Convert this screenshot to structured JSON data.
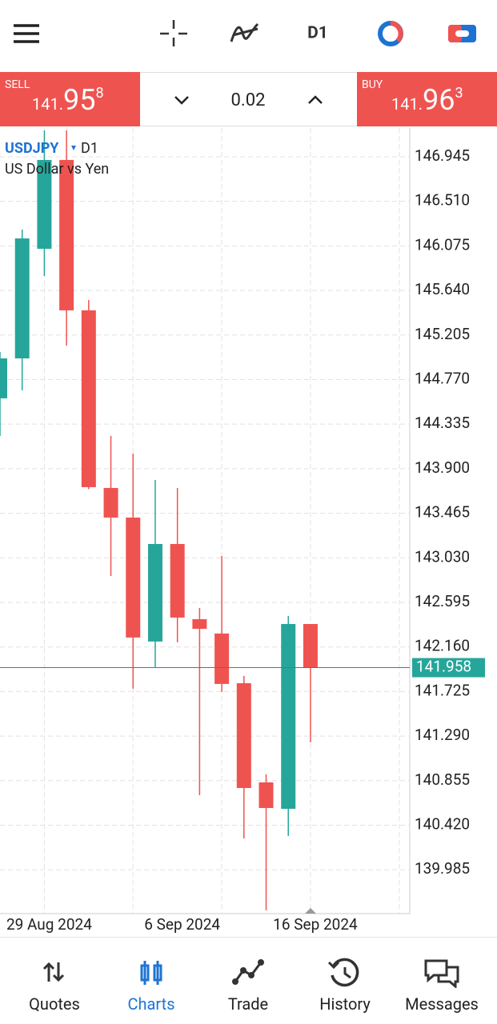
{
  "header": {
    "timeframe": "D1"
  },
  "sell": {
    "label": "SELL",
    "prefix": "141.",
    "big": "95",
    "sup": "8"
  },
  "buy": {
    "label": "BUY",
    "prefix": "141.",
    "big": "96",
    "sup": "3"
  },
  "lot": "0.02",
  "symbol": {
    "name": "USDJPY",
    "timeframe": "D1",
    "description": "US Dollar vs Yen"
  },
  "nav": [
    "Quotes",
    "Charts",
    "Trade",
    "History",
    "Messages"
  ],
  "chart_data": {
    "type": "candlestick",
    "categories": [
      null,
      null,
      "29 Aug 2024",
      null,
      null,
      null,
      null,
      null,
      "6 Sep 2024",
      null,
      null,
      null,
      null,
      null,
      "16 Sep 2024"
    ],
    "open": [
      144.587,
      144.977,
      146.047,
      146.914,
      145.446,
      143.712,
      143.423,
      142.213,
      143.165,
      142.431,
      142.291,
      141.806,
      140.838,
      140.58,
      142.384
    ],
    "high": [
      145.04,
      146.234,
      147.203,
      147.203,
      145.547,
      144.22,
      144.048,
      143.79,
      143.712,
      142.54,
      143.048,
      141.877,
      140.916,
      142.462,
      142.384
    ],
    "low": [
      144.22,
      144.665,
      145.781,
      145.102,
      143.7,
      142.853,
      141.752,
      141.963,
      142.205,
      140.713,
      141.721,
      140.291,
      139.589,
      140.315,
      141.229
    ],
    "close": [
      144.977,
      146.148,
      146.914,
      145.446,
      143.72,
      143.423,
      142.252,
      143.165,
      142.447,
      142.337,
      141.799,
      140.783,
      140.588,
      142.384,
      141.958
    ],
    "up_color": "#26a69a",
    "down_color": "#ef5350",
    "last_price": 141.958,
    "ylim": [
      139.557,
      147.226
    ],
    "yticks": [
      146.945,
      {
        "value": 146.51,
        "label": "146.510"
      },
      146.075,
      {
        "value": 145.64,
        "label": "145.640"
      },
      145.205,
      {
        "value": 144.77,
        "label": "144.770"
      },
      144.335,
      {
        "value": 143.9,
        "label": "143.900"
      },
      143.465,
      {
        "value": 143.03,
        "label": "143.030"
      },
      142.595,
      {
        "value": 142.16,
        "label": "142.160"
      },
      141.725,
      {
        "value": 141.29,
        "label": "141.290"
      },
      140.855,
      {
        "value": 140.42,
        "label": "140.420"
      },
      139.985
    ],
    "grid": true
  }
}
